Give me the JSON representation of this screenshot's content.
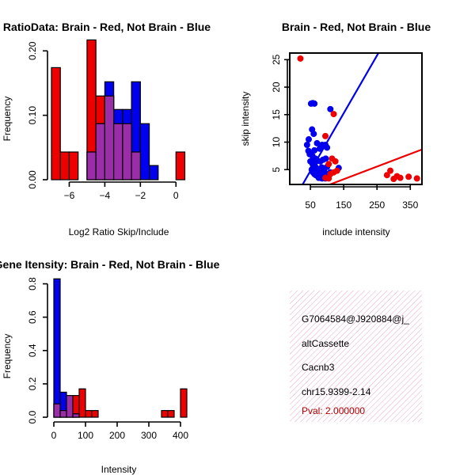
{
  "colors": {
    "red": "#ee0000",
    "blue": "#0000ee",
    "purple": "#9b2ea8",
    "panel_bg": "#f7d9ea",
    "pval": "#b00000"
  },
  "chart_data": [
    {
      "type": "bar",
      "id": "ratio_hist",
      "title": "RatioData: Brain - Red, Not Brain - Blue",
      "xlabel": "Log2 Ratio Skip/Include",
      "ylabel": "Frequency",
      "xlim": [
        -7,
        0.7
      ],
      "ylim": [
        0,
        0.22
      ],
      "bin_width": 0.5,
      "xticks": [
        -6,
        -4,
        -2,
        0
      ],
      "xtick_labels": [
        "−6",
        "−4",
        "−2",
        "0"
      ],
      "yticks": [
        0.0,
        0.1,
        0.2
      ],
      "ytick_labels": [
        "0.00",
        "0.10",
        "0.20"
      ],
      "series": [
        {
          "name": "Brain",
          "color": "red",
          "bins": [
            [
              -7,
              0.174
            ],
            [
              -6.5,
              0.043
            ],
            [
              -6,
              0.043
            ],
            [
              -5,
              0.217
            ],
            [
              -4.5,
              0.13
            ],
            [
              -4,
              0.13
            ],
            [
              -3.5,
              0.087
            ],
            [
              -3,
              0.087
            ],
            [
              -2.5,
              0.043
            ],
            [
              0,
              0.043
            ]
          ]
        },
        {
          "name": "Not Brain",
          "color": "blue",
          "bins": [
            [
              -5,
              0.043
            ],
            [
              -4.5,
              0.087
            ],
            [
              -4,
              0.152
            ],
            [
              -3.5,
              0.109
            ],
            [
              -3,
              0.109
            ],
            [
              -2.5,
              0.152
            ],
            [
              -2,
              0.087
            ],
            [
              -1.5,
              0.022
            ]
          ]
        }
      ]
    },
    {
      "type": "scatter",
      "id": "intensity_scatter",
      "title": "Brain - Red, Not Brain - Blue",
      "xlabel": "include intensity",
      "ylabel": "skip intensity",
      "xlim": [
        -12,
        385
      ],
      "ylim": [
        2.3,
        26.2
      ],
      "xticks": [
        50,
        150,
        250,
        350
      ],
      "yticks": [
        5,
        10,
        15,
        20,
        25
      ],
      "lines": [
        {
          "name": "Not Brain fit",
          "color": "blue",
          "intercept": -0.5,
          "slope": 0.105
        },
        {
          "name": "Brain fit",
          "color": "red",
          "intercept": -0.2,
          "slope": 0.023
        }
      ],
      "series": [
        {
          "name": "Not Brain",
          "color": "blue",
          "points": [
            [
              52,
              17
            ],
            [
              57,
              17.1
            ],
            [
              62,
              17
            ],
            [
              110,
              16
            ],
            [
              45,
              10.5
            ],
            [
              55,
              12.3
            ],
            [
              60,
              11.5
            ],
            [
              40,
              9.5
            ],
            [
              44,
              8.4
            ],
            [
              48,
              7.8
            ],
            [
              52,
              8
            ],
            [
              56,
              7.5
            ],
            [
              62,
              8.5
            ],
            [
              70,
              9.8
            ],
            [
              78,
              8.8
            ],
            [
              85,
              9.5
            ],
            [
              95,
              9.5
            ],
            [
              100,
              9
            ],
            [
              50,
              6.5
            ],
            [
              55,
              6.2
            ],
            [
              58,
              5.8
            ],
            [
              62,
              6
            ],
            [
              65,
              5.5
            ],
            [
              68,
              5.2
            ],
            [
              72,
              4.8
            ],
            [
              76,
              5
            ],
            [
              80,
              4.6
            ],
            [
              84,
              5.4
            ],
            [
              88,
              5
            ],
            [
              92,
              4.6
            ],
            [
              58,
              4.5
            ],
            [
              62,
              4.2
            ],
            [
              66,
              4
            ],
            [
              70,
              3.9
            ],
            [
              74,
              4.4
            ],
            [
              78,
              4.2
            ],
            [
              82,
              3.8
            ],
            [
              86,
              3.6
            ],
            [
              90,
              4
            ],
            [
              94,
              3.8
            ],
            [
              98,
              3.5
            ],
            [
              102,
              3.9
            ],
            [
              106,
              4.2
            ],
            [
              110,
              4.5
            ],
            [
              65,
              7
            ],
            [
              72,
              6.6
            ],
            [
              80,
              6.5
            ],
            [
              88,
              6.8
            ],
            [
              96,
              7
            ],
            [
              135,
              5.3
            ],
            [
              54,
              5
            ],
            [
              60,
              4.8
            ],
            [
              100,
              5.5
            ],
            [
              75,
              3.5
            ],
            [
              85,
              3.4
            ],
            [
              95,
              3.4
            ]
          ]
        },
        {
          "name": "Brain",
          "color": "red",
          "points": [
            [
              20,
              25.2
            ],
            [
              120,
              15.1
            ],
            [
              95,
              11.1
            ],
            [
              115,
              7
            ],
            [
              125,
              6.5
            ],
            [
              105,
              6
            ],
            [
              110,
              4.2
            ],
            [
              120,
              4.5
            ],
            [
              130,
              4.8
            ],
            [
              280,
              4
            ],
            [
              290,
              4.8
            ],
            [
              300,
              3.3
            ],
            [
              310,
              3.8
            ],
            [
              320,
              3.5
            ],
            [
              345,
              3.7
            ],
            [
              370,
              3.4
            ],
            [
              95,
              3.5
            ],
            [
              105,
              3.4
            ]
          ]
        }
      ]
    },
    {
      "type": "bar",
      "id": "intensity_hist",
      "title": "Gene Itensity: Brain - Red, Not Brain - Blue",
      "xlabel": "Intensity",
      "ylabel": "Frequency",
      "xlim": [
        -5,
        420
      ],
      "ylim": [
        0,
        0.85
      ],
      "bin_width": 20,
      "xticks": [
        0,
        100,
        200,
        300,
        400
      ],
      "yticks": [
        0,
        0.2,
        0.4,
        0.6,
        0.8
      ],
      "ytick_labels": [
        "0.0",
        "0.2",
        "0.4",
        "0.6",
        "0.8"
      ],
      "series": [
        {
          "name": "Brain",
          "color": "red",
          "bins": [
            [
              0,
              0.08
            ],
            [
              20,
              0.04
            ],
            [
              40,
              0.13
            ],
            [
              60,
              0.13
            ],
            [
              80,
              0.17
            ],
            [
              100,
              0.04
            ],
            [
              120,
              0.04
            ],
            [
              340,
              0.04
            ],
            [
              360,
              0.04
            ],
            [
              400,
              0.17
            ]
          ]
        },
        {
          "name": "Not Brain",
          "color": "blue",
          "bins": [
            [
              0,
              0.83
            ],
            [
              20,
              0.15
            ],
            [
              40,
              0.13
            ],
            [
              60,
              0.02
            ]
          ]
        }
      ]
    }
  ],
  "info_panel": {
    "id_line": "G7064584@J920884@j_",
    "type_line": "altCassette",
    "gene_line": "Cacnb3",
    "coord_line": "chr15.9399-2.14",
    "pval_line": "Pval: 2.000000"
  }
}
